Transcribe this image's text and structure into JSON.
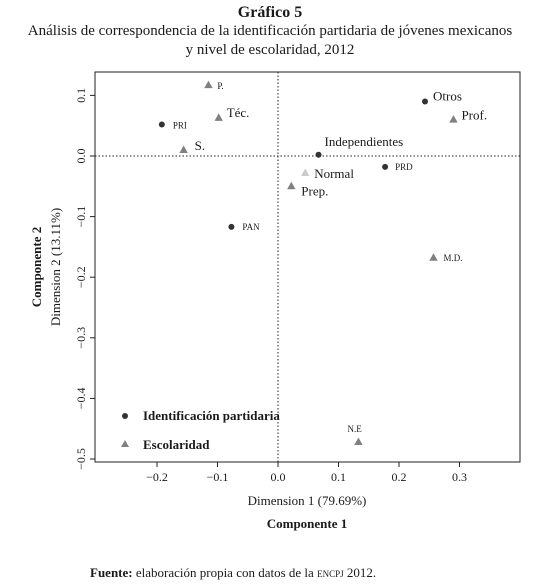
{
  "figure_label": "Gráfico 5",
  "title_line1": "Análisis de correspondencia de la identificación partidaria de jóvenes mexicanos",
  "title_line2": "y nivel de escolaridad, 2012",
  "source": {
    "label": "Fuente:",
    "text": "elaboración propia con datos de la",
    "acronym": "encpj",
    "year": "2012."
  },
  "colors": {
    "party": "#333333",
    "schooling": "#808080",
    "normal": "#cccccc",
    "axes": "#222222"
  },
  "chart_data": {
    "type": "scatter",
    "xlabel": "Dimension 1 (79.69%)",
    "xlabel_bold": "Componente 1",
    "ylabel": "Dimension 2 (13.11%)",
    "ylabel_bold": "Componente 2",
    "xlim": [
      -0.3,
      0.35
    ],
    "ylim": [
      -0.5,
      0.13
    ],
    "xticks": [
      -0.2,
      -0.1,
      0.0,
      0.1,
      0.2,
      0.3
    ],
    "yticks": [
      0.1,
      0.0,
      -0.1,
      -0.2,
      -0.3,
      -0.4,
      -0.5
    ],
    "xtick_labels": [
      "−0.2",
      "−0.1",
      "0.0",
      "0.1",
      "0.2",
      "0.3"
    ],
    "ytick_labels": [
      "0.1",
      "0.0",
      "−0.1",
      "−0.2",
      "−0.3",
      "−0.4",
      "−0.5"
    ],
    "reference_lines": {
      "x": 0,
      "y": 0,
      "style": "dotted"
    },
    "series": [
      {
        "name": "Identificación partidaria",
        "marker": "circle",
        "points": [
          {
            "label": "PRI",
            "x": -0.192,
            "y": 0.052
          },
          {
            "label": "PAN",
            "x": -0.077,
            "y": -0.117
          },
          {
            "label": "Independientes",
            "x": 0.067,
            "y": 0.002
          },
          {
            "label": "PRD",
            "x": 0.177,
            "y": -0.018
          },
          {
            "label": "Otros",
            "x": 0.243,
            "y": 0.09
          }
        ]
      },
      {
        "name": "Escolaridad",
        "marker": "triangle",
        "points": [
          {
            "label": "P.",
            "x": -0.115,
            "y": 0.117
          },
          {
            "label": "Téc.",
            "x": -0.098,
            "y": 0.063
          },
          {
            "label": "S.",
            "x": -0.156,
            "y": 0.01
          },
          {
            "label": "Normal",
            "x": 0.045,
            "y": -0.028,
            "light": true
          },
          {
            "label": "Prep.",
            "x": 0.022,
            "y": -0.05
          },
          {
            "label": "Prof.",
            "x": 0.29,
            "y": 0.06
          },
          {
            "label": "M.D.",
            "x": 0.257,
            "y": -0.168
          },
          {
            "label": "N.E",
            "x": 0.133,
            "y": -0.472
          }
        ]
      }
    ],
    "legend": {
      "position": "bottom-left",
      "entries": [
        "Identificación partidaria",
        "Escolaridad"
      ]
    }
  }
}
